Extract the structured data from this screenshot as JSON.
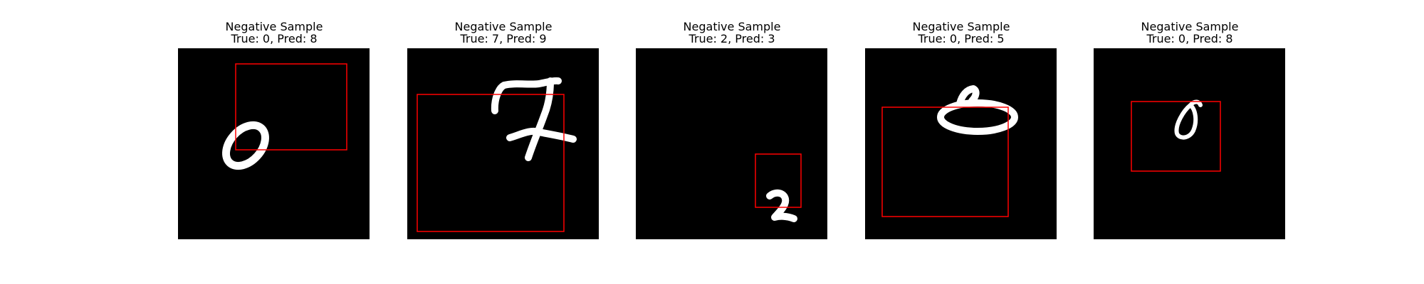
{
  "panels": [
    {
      "title": "Negative Sample",
      "subtitle": "True: 0, Pred: 8",
      "box_color": "#ff0000",
      "digit_color": "#ffffff"
    },
    {
      "title": "Negative Sample",
      "subtitle": "True: 7, Pred: 9",
      "box_color": "#ff0000",
      "digit_color": "#ffffff"
    },
    {
      "title": "Negative Sample",
      "subtitle": "True: 2, Pred: 3",
      "box_color": "#ff0000",
      "digit_color": "#ffffff"
    },
    {
      "title": "Negative Sample",
      "subtitle": "True: 0, Pred: 5",
      "box_color": "#ff0000",
      "digit_color": "#ffffff"
    },
    {
      "title": "Negative Sample",
      "subtitle": "True: 0, Pred: 8",
      "box_color": "#ff0000",
      "digit_color": "#ffffff"
    }
  ]
}
